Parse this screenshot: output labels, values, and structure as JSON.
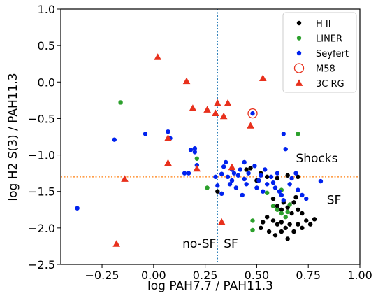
{
  "chart_data": {
    "type": "scatter",
    "xlabel": "log PAH7.7 / PAH11.3",
    "ylabel": "log H2 S(3) / PAH11.3",
    "xlim": [
      -0.45,
      1.0
    ],
    "ylim": [
      -2.5,
      1.0
    ],
    "xticks": [
      -0.25,
      0.0,
      0.25,
      0.5,
      0.75,
      1.0
    ],
    "xtick_labels": [
      "−0.25",
      "0.00",
      "0.25",
      "0.50",
      "0.75",
      "1.00"
    ],
    "yticks": [
      -2.5,
      -2.0,
      -1.5,
      -1.0,
      -0.5,
      0.0,
      0.5,
      1.0
    ],
    "ytick_labels": [
      "−2.5",
      "−2.0",
      "−1.5",
      "−1.0",
      "−0.5",
      "0.0",
      "0.5",
      "1.0"
    ],
    "grid": false,
    "legend_position": "top-right",
    "reference_lines": [
      {
        "orientation": "vertical",
        "value": 0.31,
        "color": "#1f77b4",
        "style": "dotted"
      },
      {
        "orientation": "horizontal",
        "value": -1.3,
        "color": "#ff7f0e",
        "style": "dotted"
      }
    ],
    "annotations": [
      {
        "text": "Shocks",
        "x": 0.69,
        "y": -1.1
      },
      {
        "text": "SF",
        "x": 0.84,
        "y": -1.67
      },
      {
        "text": "no-SF",
        "x": 0.14,
        "y": -2.27
      },
      {
        "text": "SF",
        "x": 0.34,
        "y": -2.27
      }
    ],
    "series": [
      {
        "name": "H II",
        "marker": "circle",
        "color": "#000000",
        "points": [
          [
            0.31,
            -1.5
          ],
          [
            0.45,
            -1.2
          ],
          [
            0.47,
            -1.18
          ],
          [
            0.52,
            -1.25
          ],
          [
            0.5,
            -1.35
          ],
          [
            0.55,
            -1.3
          ],
          [
            0.6,
            -1.32
          ],
          [
            0.65,
            -1.28
          ],
          [
            0.7,
            -1.3
          ],
          [
            0.58,
            -1.6
          ],
          [
            0.6,
            -1.7
          ],
          [
            0.62,
            -1.75
          ],
          [
            0.65,
            -1.72
          ],
          [
            0.68,
            -1.65
          ],
          [
            0.7,
            -1.75
          ],
          [
            0.72,
            -1.8
          ],
          [
            0.55,
            -1.85
          ],
          [
            0.58,
            -1.9
          ],
          [
            0.6,
            -1.95
          ],
          [
            0.62,
            -1.92
          ],
          [
            0.64,
            -2.0
          ],
          [
            0.66,
            -1.95
          ],
          [
            0.68,
            -2.05
          ],
          [
            0.7,
            -1.95
          ],
          [
            0.72,
            -2.0
          ],
          [
            0.74,
            -1.9
          ],
          [
            0.76,
            -1.95
          ],
          [
            0.78,
            -1.88
          ],
          [
            0.53,
            -1.92
          ],
          [
            0.56,
            -2.05
          ],
          [
            0.59,
            -2.1
          ],
          [
            0.62,
            -2.05
          ],
          [
            0.65,
            -2.15
          ],
          [
            0.67,
            -1.8
          ],
          [
            0.63,
            -1.65
          ],
          [
            0.69,
            -1.58
          ],
          [
            0.52,
            -2.0
          ]
        ]
      },
      {
        "name": "LINER",
        "marker": "circle",
        "color": "#2ca02c",
        "points": [
          [
            -0.16,
            -0.28
          ],
          [
            0.21,
            -1.05
          ],
          [
            0.26,
            -1.45
          ],
          [
            0.7,
            -0.71
          ],
          [
            0.55,
            -1.52
          ],
          [
            0.6,
            -1.75
          ],
          [
            0.62,
            -1.8
          ],
          [
            0.65,
            -1.78
          ],
          [
            0.62,
            -1.48
          ],
          [
            0.66,
            -1.68
          ],
          [
            0.48,
            -1.9
          ],
          [
            0.48,
            -2.03
          ],
          [
            0.58,
            -1.7
          ],
          [
            0.64,
            -1.85
          ]
        ]
      },
      {
        "name": "Seyfert",
        "marker": "circle",
        "color": "#0022ee",
        "points": [
          [
            -0.37,
            -1.73
          ],
          [
            -0.19,
            -0.79
          ],
          [
            -0.04,
            -0.71
          ],
          [
            0.07,
            -0.68
          ],
          [
            0.08,
            -0.77
          ],
          [
            0.15,
            -1.25
          ],
          [
            0.17,
            -1.25
          ],
          [
            0.18,
            -0.93
          ],
          [
            0.2,
            -0.91
          ],
          [
            0.2,
            -0.96
          ],
          [
            0.21,
            -1.14
          ],
          [
            0.3,
            -1.3
          ],
          [
            0.31,
            -1.42
          ],
          [
            0.33,
            -1.26
          ],
          [
            0.34,
            -1.16
          ],
          [
            0.35,
            -1.1
          ],
          [
            0.36,
            -1.3
          ],
          [
            0.37,
            -1.4
          ],
          [
            0.38,
            -1.35
          ],
          [
            0.39,
            -1.25
          ],
          [
            0.4,
            -1.45
          ],
          [
            0.41,
            -1.28
          ],
          [
            0.42,
            -1.2
          ],
          [
            0.43,
            -1.55
          ],
          [
            0.44,
            -1.33
          ],
          [
            0.45,
            -1.4
          ],
          [
            0.46,
            -1.25
          ],
          [
            0.48,
            -0.43
          ],
          [
            0.49,
            -1.15
          ],
          [
            0.5,
            -1.45
          ],
          [
            0.51,
            -1.35
          ],
          [
            0.52,
            -1.28
          ],
          [
            0.53,
            -1.5
          ],
          [
            0.54,
            -1.2
          ],
          [
            0.55,
            -1.4
          ],
          [
            0.57,
            -1.3
          ],
          [
            0.58,
            -1.38
          ],
          [
            0.59,
            -1.45
          ],
          [
            0.6,
            -1.25
          ],
          [
            0.61,
            -1.5
          ],
          [
            0.62,
            -1.55
          ],
          [
            0.63,
            -0.71
          ],
          [
            0.63,
            -1.62
          ],
          [
            0.64,
            -0.92
          ],
          [
            0.66,
            -1.4
          ],
          [
            0.67,
            -1.32
          ],
          [
            0.69,
            -1.25
          ],
          [
            0.7,
            -1.48
          ],
          [
            0.72,
            -1.55
          ],
          [
            0.74,
            -1.6
          ],
          [
            0.81,
            -1.36
          ],
          [
            0.33,
            -1.53
          ],
          [
            0.38,
            -1.2
          ],
          [
            0.44,
            -1.1
          ]
        ]
      },
      {
        "name": "M58",
        "marker": "open-circle",
        "color": "#e8301c",
        "points": [
          [
            0.48,
            -0.43
          ]
        ]
      },
      {
        "name": "3C RG",
        "marker": "triangle",
        "color": "#e8301c",
        "points": [
          [
            0.02,
            0.34
          ],
          [
            0.16,
            0.01
          ],
          [
            0.53,
            0.05
          ],
          [
            -0.14,
            -1.33
          ],
          [
            -0.18,
            -2.22
          ],
          [
            0.07,
            -0.77
          ],
          [
            0.07,
            -1.11
          ],
          [
            0.19,
            -0.36
          ],
          [
            0.21,
            -1.19
          ],
          [
            0.26,
            -0.38
          ],
          [
            0.3,
            -0.43
          ],
          [
            0.31,
            -0.29
          ],
          [
            0.33,
            -1.92
          ],
          [
            0.34,
            -0.47
          ],
          [
            0.36,
            -0.29
          ],
          [
            0.38,
            -1.17
          ],
          [
            0.47,
            -0.6
          ]
        ]
      }
    ]
  }
}
